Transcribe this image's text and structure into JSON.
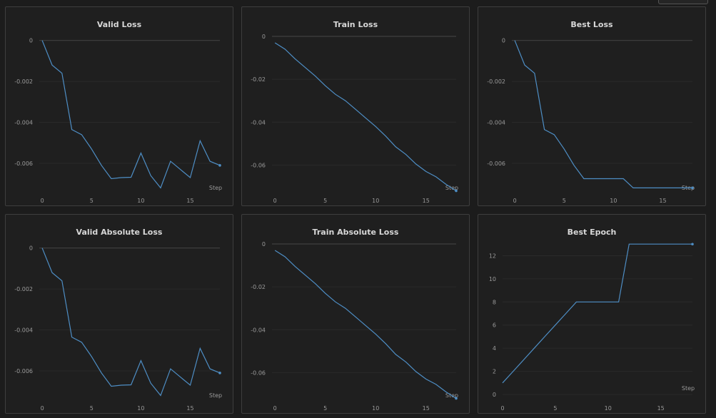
{
  "charts": [
    {
      "title": "Valid Loss",
      "xlabel": "Step",
      "chart_data": {
        "type": "line",
        "x": [
          0,
          1,
          2,
          3,
          4,
          5,
          6,
          7,
          8,
          9,
          10,
          11,
          12,
          13,
          14,
          15,
          16,
          17,
          18
        ],
        "y": [
          0,
          -0.0012,
          -0.0016,
          -0.00435,
          -0.0046,
          -0.0053,
          -0.0061,
          -0.00675,
          -0.0067,
          -0.00668,
          -0.0055,
          -0.0066,
          -0.0072,
          -0.0059,
          -0.0063,
          -0.0067,
          -0.0049,
          -0.0059,
          -0.0061
        ],
        "ylim": [
          -0.0075,
          0.0002
        ],
        "xlim": [
          -0.3,
          18
        ],
        "yticks": [
          0,
          -0.002,
          -0.004,
          -0.006
        ],
        "ytick_labels": [
          "0",
          "-0.002",
          "-0.004",
          "-0.006"
        ],
        "xticks": [
          0,
          5,
          10,
          15
        ],
        "xtick_labels": [
          "0",
          "5",
          "10",
          "15"
        ],
        "xlabel": "Step",
        "grid": true,
        "color": "#4e8ec5"
      }
    },
    {
      "title": "Train Loss",
      "xlabel": "Step",
      "chart_data": {
        "type": "line",
        "x": [
          0,
          1,
          2,
          3,
          4,
          5,
          6,
          7,
          8,
          9,
          10,
          11,
          12,
          13,
          14,
          15,
          16,
          17,
          18
        ],
        "y": [
          -0.003,
          -0.006,
          -0.0105,
          -0.0145,
          -0.0185,
          -0.023,
          -0.027,
          -0.03,
          -0.034,
          -0.038,
          -0.042,
          -0.0465,
          -0.0515,
          -0.055,
          -0.0595,
          -0.063,
          -0.0655,
          -0.069,
          -0.072
        ],
        "ylim": [
          -0.0735,
          0.001
        ],
        "xlim": [
          -0.3,
          18
        ],
        "yticks": [
          0,
          -0.02,
          -0.04,
          -0.06
        ],
        "ytick_labels": [
          "0",
          "-0.02",
          "-0.04",
          "-0.06"
        ],
        "xticks": [
          0,
          5,
          10,
          15
        ],
        "xtick_labels": [
          "0",
          "5",
          "10",
          "15"
        ],
        "xlabel": "Step",
        "grid": true,
        "color": "#4e8ec5"
      }
    },
    {
      "title": "Best Loss",
      "xlabel": "Step",
      "chart_data": {
        "type": "line",
        "x": [
          0,
          1,
          2,
          3,
          4,
          5,
          6,
          7,
          8,
          9,
          10,
          11,
          12,
          13,
          14,
          15,
          16,
          17,
          18
        ],
        "y": [
          0,
          -0.0012,
          -0.0016,
          -0.00435,
          -0.0046,
          -0.0053,
          -0.0061,
          -0.00675,
          -0.00675,
          -0.00675,
          -0.00675,
          -0.00675,
          -0.0072,
          -0.0072,
          -0.0072,
          -0.0072,
          -0.0072,
          -0.0072,
          -0.0072
        ],
        "ylim": [
          -0.0075,
          0.0002
        ],
        "xlim": [
          -0.3,
          18
        ],
        "yticks": [
          0,
          -0.002,
          -0.004,
          -0.006
        ],
        "ytick_labels": [
          "0",
          "-0.002",
          "-0.004",
          "-0.006"
        ],
        "xticks": [
          0,
          5,
          10,
          15
        ],
        "xtick_labels": [
          "0",
          "5",
          "10",
          "15"
        ],
        "xlabel": "Step",
        "grid": true,
        "color": "#4e8ec5"
      }
    },
    {
      "title": "Valid Absolute Loss",
      "xlabel": "Step",
      "chart_data": {
        "type": "line",
        "x": [
          0,
          1,
          2,
          3,
          4,
          5,
          6,
          7,
          8,
          9,
          10,
          11,
          12,
          13,
          14,
          15,
          16,
          17,
          18
        ],
        "y": [
          0,
          -0.0012,
          -0.0016,
          -0.00435,
          -0.0046,
          -0.0053,
          -0.0061,
          -0.00675,
          -0.0067,
          -0.00668,
          -0.0055,
          -0.0066,
          -0.0072,
          -0.0059,
          -0.0063,
          -0.0067,
          -0.0049,
          -0.0059,
          -0.0061
        ],
        "ylim": [
          -0.0075,
          0.0002
        ],
        "xlim": [
          -0.3,
          18
        ],
        "yticks": [
          0,
          -0.002,
          -0.004,
          -0.006
        ],
        "ytick_labels": [
          "0",
          "-0.002",
          "-0.004",
          "-0.006"
        ],
        "xticks": [
          0,
          5,
          10,
          15
        ],
        "xtick_labels": [
          "0",
          "5",
          "10",
          "15"
        ],
        "xlabel": "Step",
        "grid": true,
        "color": "#4e8ec5"
      }
    },
    {
      "title": "Train Absolute Loss",
      "xlabel": "Step",
      "chart_data": {
        "type": "line",
        "x": [
          0,
          1,
          2,
          3,
          4,
          5,
          6,
          7,
          8,
          9,
          10,
          11,
          12,
          13,
          14,
          15,
          16,
          17,
          18
        ],
        "y": [
          -0.003,
          -0.006,
          -0.0105,
          -0.0145,
          -0.0185,
          -0.023,
          -0.027,
          -0.03,
          -0.034,
          -0.038,
          -0.042,
          -0.0465,
          -0.0515,
          -0.055,
          -0.0595,
          -0.063,
          -0.0655,
          -0.069,
          -0.072
        ],
        "ylim": [
          -0.0735,
          0.001
        ],
        "xlim": [
          -0.3,
          18
        ],
        "yticks": [
          0,
          -0.02,
          -0.04,
          -0.06
        ],
        "ytick_labels": [
          "0",
          "-0.02",
          "-0.04",
          "-0.06"
        ],
        "xticks": [
          0,
          5,
          10,
          15
        ],
        "xtick_labels": [
          "0",
          "5",
          "10",
          "15"
        ],
        "xlabel": "Step",
        "grid": true,
        "color": "#4e8ec5"
      }
    },
    {
      "title": "Best Epoch",
      "xlabel": "Step",
      "chart_data": {
        "type": "line",
        "x": [
          0,
          1,
          2,
          3,
          4,
          5,
          6,
          7,
          8,
          9,
          10,
          11,
          12,
          13,
          14,
          15,
          16,
          17,
          18
        ],
        "y": [
          1,
          2,
          3,
          4,
          5,
          6,
          7,
          8,
          8,
          8,
          8,
          8,
          13,
          13,
          13,
          13,
          13,
          13,
          13
        ],
        "ylim": [
          0,
          13.2
        ],
        "xlim": [
          0,
          18
        ],
        "yticks": [
          0,
          2,
          4,
          6,
          8,
          10,
          12
        ],
        "ytick_labels": [
          "0",
          "2",
          "4",
          "6",
          "8",
          "10",
          "12"
        ],
        "xticks": [
          0,
          5,
          10,
          15
        ],
        "xtick_labels": [
          "0",
          "5",
          "10",
          "15"
        ],
        "xlabel": "Step",
        "grid": true,
        "color": "#4e8ec5"
      }
    }
  ]
}
